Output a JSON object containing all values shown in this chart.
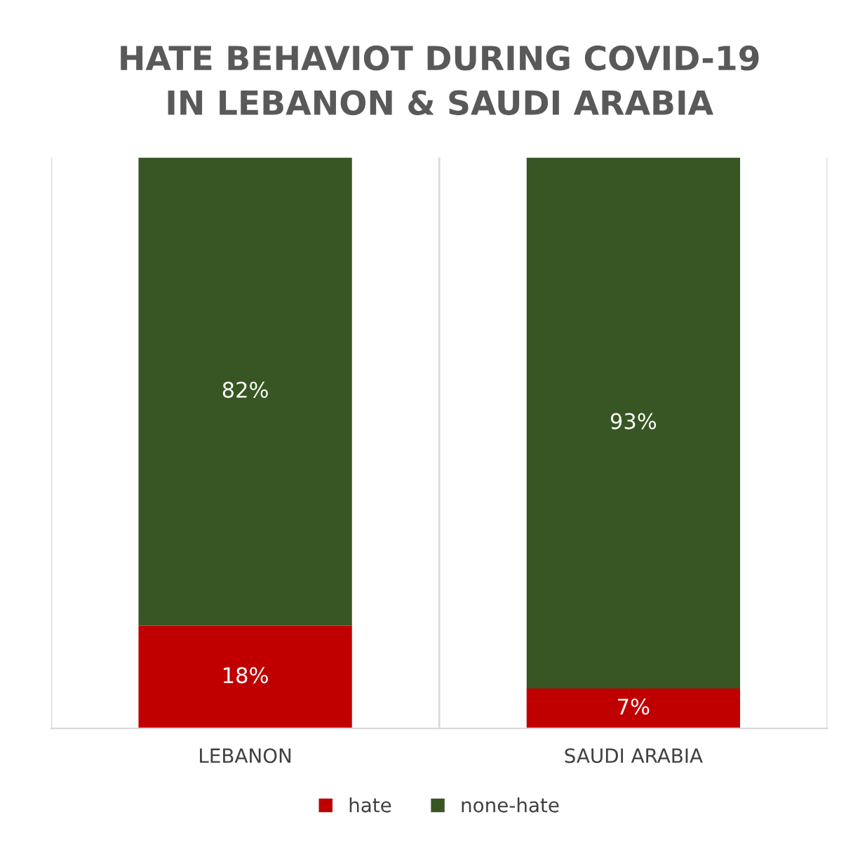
{
  "chart_data": {
    "type": "bar",
    "title": "HATE BEHAVIOT DURING COVID-19\nIN LEBANON & SAUDI ARABIA",
    "categories": [
      "LEBANON",
      "SAUDI ARABIA"
    ],
    "stacked": true,
    "series": [
      {
        "name": "hate",
        "color": "#c00000",
        "values": [
          18,
          7
        ],
        "value_labels": [
          "18%",
          "7%"
        ]
      },
      {
        "name": "none-hate",
        "color": "#375623",
        "values": [
          82,
          93
        ],
        "value_labels": [
          "82%",
          "93%"
        ]
      }
    ],
    "ylim": [
      0,
      100
    ],
    "tick_labels": "x",
    "grid": "x",
    "legend": "bottom"
  }
}
